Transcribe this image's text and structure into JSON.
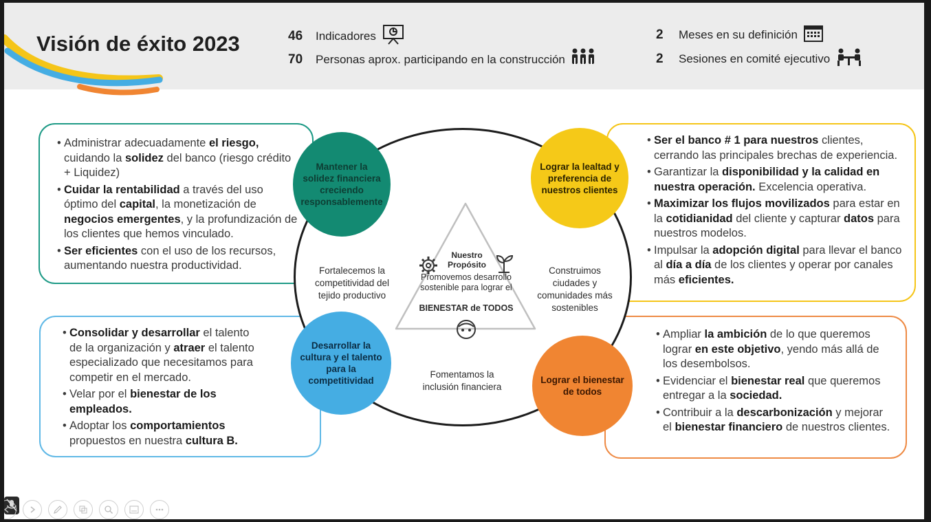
{
  "title": "Visión de éxito 2023",
  "stats": [
    {
      "value": "46",
      "label": "Indicadores",
      "icon": "presentation-icon"
    },
    {
      "value": "70",
      "label": "Personas aprox. participando en la construcción",
      "icon": "people-icon"
    },
    {
      "value": "2",
      "label": "Meses en su definición",
      "icon": "calendar-icon"
    },
    {
      "value": "2",
      "label": "Sesiones en comité ejecutivo",
      "icon": "meeting-icon"
    }
  ],
  "nodes": {
    "solidez": "Mantener la solidez financiera creciendo responsablemente",
    "lealtad": "Lograr la lealtad y preferencia de nuestros clientes",
    "cultura": "Desarrollar la cultura y el talento para la competitividad",
    "bienestar": "Lograr el bienestar de todos"
  },
  "center": {
    "label": "Nuestro Propósito",
    "body": "Promovemos desarrollo sostenible para lograr el",
    "emphasis": "BIENESTAR de TODOS"
  },
  "circle_text": {
    "left": "Fortalecemos la competitividad del tejido productivo",
    "right": "Construimos ciudades y comunidades más sostenibles",
    "bottom": "Fomentamos la inclusión financiera"
  },
  "colors": {
    "teal": "#138a72",
    "yellow": "#f5c918",
    "blue": "#45ade3",
    "orange": "#f08532",
    "box_teal": "#1e9a86",
    "box_yellow": "#f5c518",
    "box_blue": "#5fb8e6",
    "box_orange": "#ee8a44"
  },
  "toolbar": [
    "mic-muted-icon",
    "prev-icon",
    "next-icon",
    "pen-icon",
    "copy-icon",
    "zoom-icon",
    "subtitle-icon",
    "more-icon"
  ]
}
